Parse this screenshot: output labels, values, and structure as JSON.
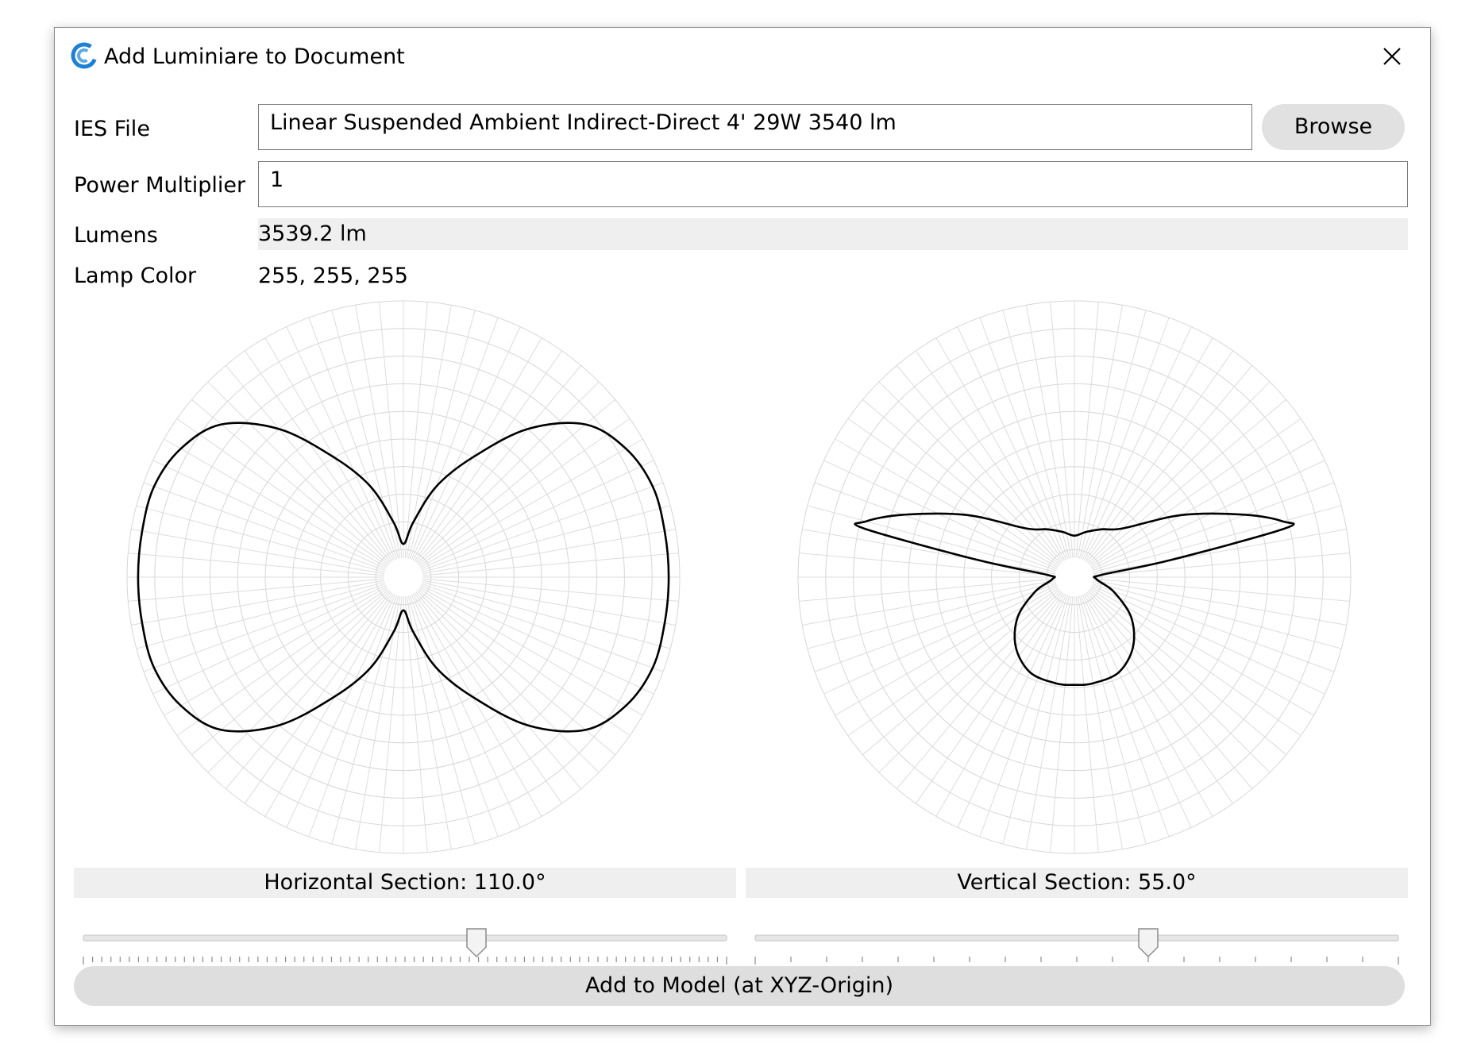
{
  "window": {
    "title": "Add Luminiare to Document",
    "icon": "app-logo-icon",
    "close_icon": "close-icon",
    "accent_color": "#1e7fd4"
  },
  "form": {
    "ies_file_label": "IES File",
    "ies_file_value": "Linear Suspended Ambient Indirect-Direct 4' 29W 3540 lm",
    "browse_label": "Browse",
    "power_multiplier_label": "Power Multiplier",
    "power_multiplier_value": "1",
    "lumens_label": "Lumens",
    "lumens_value": "3539.2 lm",
    "lamp_color_label": "Lamp Color",
    "lamp_color_value": "255, 255, 255"
  },
  "chart_data": [
    {
      "type": "polar",
      "name": "horizontal-section",
      "grid": true,
      "angle_unit": "degrees (0 = up, clockwise)",
      "radius_unit": "relative intensity (outer ring = 1.0)",
      "points": [
        [
          0,
          0.12
        ],
        [
          10,
          0.2
        ],
        [
          20,
          0.35
        ],
        [
          30,
          0.5
        ],
        [
          40,
          0.7
        ],
        [
          50,
          0.86
        ],
        [
          60,
          0.93
        ],
        [
          70,
          0.96
        ],
        [
          80,
          0.96
        ],
        [
          90,
          0.96
        ],
        [
          100,
          0.96
        ],
        [
          110,
          0.96
        ],
        [
          120,
          0.93
        ],
        [
          130,
          0.86
        ],
        [
          140,
          0.7
        ],
        [
          150,
          0.5
        ],
        [
          160,
          0.35
        ],
        [
          170,
          0.2
        ],
        [
          180,
          0.12
        ],
        [
          190,
          0.2
        ],
        [
          200,
          0.35
        ],
        [
          210,
          0.5
        ],
        [
          220,
          0.7
        ],
        [
          230,
          0.86
        ],
        [
          240,
          0.93
        ],
        [
          250,
          0.96
        ],
        [
          260,
          0.96
        ],
        [
          270,
          0.96
        ],
        [
          280,
          0.96
        ],
        [
          290,
          0.96
        ],
        [
          300,
          0.93
        ],
        [
          310,
          0.86
        ],
        [
          320,
          0.7
        ],
        [
          330,
          0.5
        ],
        [
          340,
          0.35
        ],
        [
          350,
          0.2
        ]
      ]
    },
    {
      "type": "polar",
      "name": "vertical-section",
      "grid": true,
      "angle_unit": "degrees (0 = up, clockwise)",
      "radius_unit": "relative intensity (outer ring = 1.0)",
      "points": [
        [
          0,
          0.15
        ],
        [
          15,
          0.17
        ],
        [
          30,
          0.2
        ],
        [
          45,
          0.25
        ],
        [
          60,
          0.45
        ],
        [
          70,
          0.66
        ],
        [
          75,
          0.78
        ],
        [
          77,
          0.78
        ],
        [
          80,
          0.35
        ],
        [
          85,
          0.1
        ],
        [
          95,
          0.08
        ],
        [
          110,
          0.15
        ],
        [
          125,
          0.25
        ],
        [
          140,
          0.33
        ],
        [
          155,
          0.38
        ],
        [
          170,
          0.39
        ],
        [
          180,
          0.39
        ],
        [
          190,
          0.39
        ],
        [
          205,
          0.38
        ],
        [
          220,
          0.33
        ],
        [
          235,
          0.25
        ],
        [
          250,
          0.15
        ],
        [
          265,
          0.08
        ],
        [
          275,
          0.1
        ],
        [
          280,
          0.35
        ],
        [
          283,
          0.78
        ],
        [
          285,
          0.78
        ],
        [
          290,
          0.66
        ],
        [
          300,
          0.45
        ],
        [
          315,
          0.25
        ],
        [
          330,
          0.2
        ],
        [
          345,
          0.17
        ]
      ]
    }
  ],
  "horizontal_section": {
    "label": "Horizontal Section: 110.0°",
    "value_deg": 110.0,
    "min_deg": 0,
    "max_deg": 180,
    "tick_count": 71
  },
  "vertical_section": {
    "label": "Vertical Section: 55.0°",
    "value_deg": 55.0,
    "min_deg": 0,
    "max_deg": 90,
    "tick_count": 19
  },
  "actions": {
    "add_to_model_label": "Add to Model (at XYZ-Origin)"
  }
}
